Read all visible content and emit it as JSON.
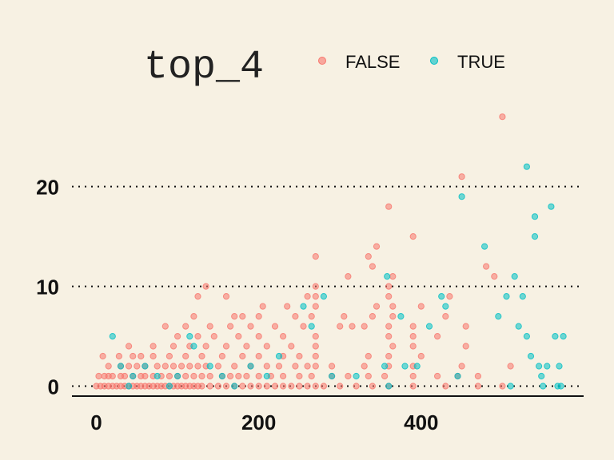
{
  "chart_data": {
    "type": "scatter",
    "title": "",
    "xlabel": "",
    "ylabel": "",
    "xlim": [
      -30,
      600
    ],
    "ylim": [
      -1,
      27.5
    ],
    "x_ticks": [
      {
        "value": 0,
        "label": "0"
      },
      {
        "value": 200,
        "label": "200"
      },
      {
        "value": 400,
        "label": "400"
      }
    ],
    "y_ticks": [
      {
        "value": 0,
        "label": "0"
      },
      {
        "value": 10,
        "label": "10"
      },
      {
        "value": 20,
        "label": "20"
      }
    ],
    "grid": "horizontal dotted",
    "legend": {
      "title": "top_4",
      "position": "top",
      "entries": [
        {
          "label": "FALSE",
          "color": "#f8766d"
        },
        {
          "label": "TRUE",
          "color": "#00bfc4"
        }
      ]
    },
    "series": [
      {
        "name": "FALSE",
        "color": "#f8766d",
        "points": [
          [
            0,
            0
          ],
          [
            5,
            0
          ],
          [
            10,
            0
          ],
          [
            15,
            0
          ],
          [
            20,
            0
          ],
          [
            25,
            0
          ],
          [
            30,
            0
          ],
          [
            35,
            0
          ],
          [
            40,
            0
          ],
          [
            45,
            0
          ],
          [
            50,
            0
          ],
          [
            55,
            0
          ],
          [
            60,
            0
          ],
          [
            65,
            0
          ],
          [
            70,
            0
          ],
          [
            75,
            0
          ],
          [
            80,
            0
          ],
          [
            85,
            0
          ],
          [
            90,
            0
          ],
          [
            95,
            0
          ],
          [
            100,
            0
          ],
          [
            105,
            0
          ],
          [
            110,
            0
          ],
          [
            115,
            0
          ],
          [
            120,
            0
          ],
          [
            125,
            0
          ],
          [
            130,
            0
          ],
          [
            140,
            0
          ],
          [
            150,
            0
          ],
          [
            160,
            0
          ],
          [
            170,
            0
          ],
          [
            180,
            0
          ],
          [
            190,
            0
          ],
          [
            200,
            0
          ],
          [
            210,
            0
          ],
          [
            220,
            0
          ],
          [
            230,
            0
          ],
          [
            240,
            0
          ],
          [
            250,
            0
          ],
          [
            260,
            0
          ],
          [
            270,
            0
          ],
          [
            280,
            0
          ],
          [
            300,
            0
          ],
          [
            320,
            0
          ],
          [
            340,
            0
          ],
          [
            360,
            0
          ],
          [
            390,
            0
          ],
          [
            430,
            0
          ],
          [
            470,
            0
          ],
          [
            500,
            0
          ],
          [
            3,
            1
          ],
          [
            10,
            1
          ],
          [
            15,
            1
          ],
          [
            20,
            1
          ],
          [
            30,
            1
          ],
          [
            35,
            1
          ],
          [
            45,
            1
          ],
          [
            55,
            1
          ],
          [
            60,
            1
          ],
          [
            70,
            1
          ],
          [
            80,
            1
          ],
          [
            90,
            1
          ],
          [
            100,
            1
          ],
          [
            110,
            1
          ],
          [
            120,
            1
          ],
          [
            130,
            1
          ],
          [
            140,
            1
          ],
          [
            155,
            1
          ],
          [
            165,
            1
          ],
          [
            175,
            1
          ],
          [
            185,
            1
          ],
          [
            200,
            1
          ],
          [
            215,
            1
          ],
          [
            230,
            1
          ],
          [
            250,
            1
          ],
          [
            265,
            1
          ],
          [
            290,
            1
          ],
          [
            310,
            1
          ],
          [
            335,
            1
          ],
          [
            355,
            1
          ],
          [
            390,
            1
          ],
          [
            420,
            1
          ],
          [
            445,
            1
          ],
          [
            470,
            1
          ],
          [
            15,
            2
          ],
          [
            30,
            2
          ],
          [
            40,
            2
          ],
          [
            50,
            2
          ],
          [
            60,
            2
          ],
          [
            75,
            2
          ],
          [
            85,
            2
          ],
          [
            95,
            2
          ],
          [
            105,
            2
          ],
          [
            115,
            2
          ],
          [
            125,
            2
          ],
          [
            135,
            2
          ],
          [
            150,
            2
          ],
          [
            170,
            2
          ],
          [
            190,
            2
          ],
          [
            210,
            2
          ],
          [
            225,
            2
          ],
          [
            245,
            2
          ],
          [
            260,
            2
          ],
          [
            270,
            2
          ],
          [
            290,
            2
          ],
          [
            330,
            2
          ],
          [
            360,
            2
          ],
          [
            390,
            2
          ],
          [
            450,
            2
          ],
          [
            510,
            2
          ],
          [
            8,
            3
          ],
          [
            28,
            3
          ],
          [
            45,
            3
          ],
          [
            55,
            3
          ],
          [
            70,
            3
          ],
          [
            90,
            3
          ],
          [
            110,
            3
          ],
          [
            130,
            3
          ],
          [
            155,
            3
          ],
          [
            180,
            3
          ],
          [
            200,
            3
          ],
          [
            230,
            3
          ],
          [
            250,
            3
          ],
          [
            270,
            3
          ],
          [
            335,
            3
          ],
          [
            360,
            3
          ],
          [
            400,
            3
          ],
          [
            40,
            4
          ],
          [
            70,
            4
          ],
          [
            95,
            4
          ],
          [
            115,
            4
          ],
          [
            135,
            4
          ],
          [
            160,
            4
          ],
          [
            185,
            4
          ],
          [
            210,
            4
          ],
          [
            240,
            4
          ],
          [
            270,
            4
          ],
          [
            365,
            4
          ],
          [
            390,
            4
          ],
          [
            455,
            4
          ],
          [
            100,
            5
          ],
          [
            125,
            5
          ],
          [
            145,
            5
          ],
          [
            175,
            5
          ],
          [
            200,
            5
          ],
          [
            230,
            5
          ],
          [
            270,
            5
          ],
          [
            360,
            5
          ],
          [
            390,
            5
          ],
          [
            420,
            5
          ],
          [
            85,
            6
          ],
          [
            110,
            6
          ],
          [
            140,
            6
          ],
          [
            165,
            6
          ],
          [
            190,
            6
          ],
          [
            220,
            6
          ],
          [
            255,
            6
          ],
          [
            300,
            6
          ],
          [
            315,
            6
          ],
          [
            330,
            6
          ],
          [
            360,
            6
          ],
          [
            390,
            6
          ],
          [
            455,
            6
          ],
          [
            120,
            7
          ],
          [
            170,
            7
          ],
          [
            180,
            7
          ],
          [
            200,
            7
          ],
          [
            245,
            7
          ],
          [
            265,
            7
          ],
          [
            305,
            7
          ],
          [
            340,
            7
          ],
          [
            365,
            7
          ],
          [
            430,
            7
          ],
          [
            205,
            8
          ],
          [
            235,
            8
          ],
          [
            270,
            8
          ],
          [
            345,
            8
          ],
          [
            365,
            8
          ],
          [
            400,
            8
          ],
          [
            125,
            9
          ],
          [
            160,
            9
          ],
          [
            260,
            9
          ],
          [
            270,
            9
          ],
          [
            360,
            9
          ],
          [
            435,
            9
          ],
          [
            135,
            10
          ],
          [
            270,
            10
          ],
          [
            360,
            10
          ],
          [
            310,
            11
          ],
          [
            365,
            11
          ],
          [
            490,
            11
          ],
          [
            340,
            12
          ],
          [
            480,
            12
          ],
          [
            270,
            13
          ],
          [
            335,
            13
          ],
          [
            345,
            14
          ],
          [
            390,
            15
          ],
          [
            360,
            18
          ],
          [
            450,
            21
          ],
          [
            500,
            27
          ]
        ]
      },
      {
        "name": "TRUE",
        "color": "#00bfc4",
        "points": [
          [
            20,
            5
          ],
          [
            30,
            2
          ],
          [
            40,
            0
          ],
          [
            45,
            1
          ],
          [
            60,
            2
          ],
          [
            75,
            1
          ],
          [
            90,
            0
          ],
          [
            100,
            1
          ],
          [
            115,
            5
          ],
          [
            120,
            4
          ],
          [
            140,
            2
          ],
          [
            155,
            1
          ],
          [
            170,
            0
          ],
          [
            190,
            2
          ],
          [
            210,
            1
          ],
          [
            225,
            3
          ],
          [
            255,
            8
          ],
          [
            265,
            6
          ],
          [
            280,
            9
          ],
          [
            290,
            1
          ],
          [
            320,
            1
          ],
          [
            355,
            2
          ],
          [
            358,
            11
          ],
          [
            360,
            0
          ],
          [
            375,
            7
          ],
          [
            380,
            2
          ],
          [
            395,
            2
          ],
          [
            410,
            6
          ],
          [
            425,
            9
          ],
          [
            430,
            8
          ],
          [
            445,
            1
          ],
          [
            450,
            19
          ],
          [
            478,
            14
          ],
          [
            495,
            7
          ],
          [
            505,
            9
          ],
          [
            510,
            0
          ],
          [
            515,
            11
          ],
          [
            520,
            6
          ],
          [
            525,
            9
          ],
          [
            530,
            5
          ],
          [
            530,
            22
          ],
          [
            535,
            3
          ],
          [
            540,
            17
          ],
          [
            540,
            15
          ],
          [
            545,
            2
          ],
          [
            548,
            1
          ],
          [
            550,
            0
          ],
          [
            555,
            2
          ],
          [
            560,
            18
          ],
          [
            565,
            5
          ],
          [
            568,
            0
          ],
          [
            570,
            2
          ],
          [
            572,
            0
          ],
          [
            575,
            5
          ]
        ]
      }
    ]
  }
}
